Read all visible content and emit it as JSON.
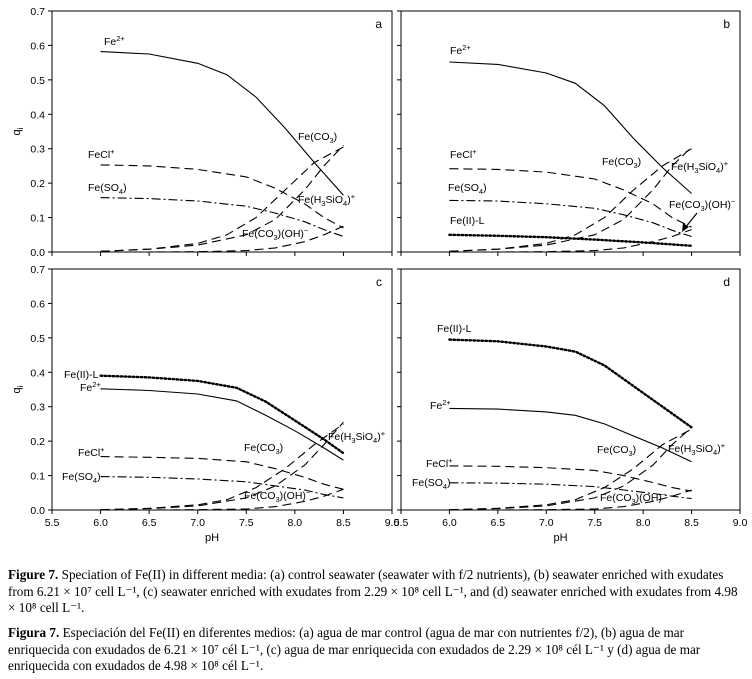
{
  "figure": {
    "xlabel": "pH",
    "ylabel": "q",
    "ylabel_sub": "i",
    "xticks": [
      "5.5",
      "6.0",
      "6.5",
      "7.0",
      "7.5",
      "8.0",
      "8.5",
      "9.0"
    ],
    "yticks": [
      "0.0",
      "0.1",
      "0.2",
      "0.3",
      "0.4",
      "0.5",
      "0.6",
      "0.7"
    ]
  },
  "chart_data": [
    {
      "panel": "a",
      "type": "line",
      "xlim": [
        5.5,
        9.0
      ],
      "ylim": [
        0,
        0.7
      ],
      "grid": false,
      "series": [
        {
          "name": "Fe2+",
          "style": "solid",
          "x": [
            6.0,
            6.5,
            7.0,
            7.3,
            7.6,
            7.9,
            8.2,
            8.5
          ],
          "y": [
            0.582,
            0.575,
            0.548,
            0.515,
            0.45,
            0.36,
            0.26,
            0.165
          ]
        },
        {
          "name": "FeCl+",
          "style": "longdash",
          "x": [
            6.0,
            6.5,
            7.0,
            7.5,
            7.8,
            8.1,
            8.3,
            8.5
          ],
          "y": [
            0.253,
            0.25,
            0.24,
            0.218,
            0.185,
            0.14,
            0.1,
            0.07
          ]
        },
        {
          "name": "Fe(SO4)",
          "style": "dashdot",
          "x": [
            6.0,
            6.5,
            7.0,
            7.5,
            7.8,
            8.1,
            8.3,
            8.5
          ],
          "y": [
            0.158,
            0.155,
            0.148,
            0.133,
            0.113,
            0.088,
            0.065,
            0.045
          ]
        },
        {
          "name": "Fe(CO3)",
          "style": "longdash",
          "x": [
            6.0,
            6.5,
            7.0,
            7.3,
            7.6,
            7.9,
            8.2,
            8.5
          ],
          "y": [
            0.002,
            0.008,
            0.025,
            0.05,
            0.1,
            0.18,
            0.26,
            0.305
          ]
        },
        {
          "name": "Fe(H3SiO4)+",
          "style": "longdash",
          "x": [
            6.0,
            6.5,
            7.0,
            7.5,
            7.8,
            8.1,
            8.3,
            8.5
          ],
          "y": [
            0.002,
            0.008,
            0.02,
            0.05,
            0.095,
            0.18,
            0.25,
            0.31
          ]
        },
        {
          "name": "Fe(CO3)(OH)-",
          "style": "longdash",
          "x": [
            6.0,
            6.5,
            7.0,
            7.5,
            7.8,
            8.1,
            8.3,
            8.5
          ],
          "y": [
            0.0,
            0.0,
            0.001,
            0.004,
            0.012,
            0.03,
            0.05,
            0.075
          ]
        }
      ]
    },
    {
      "panel": "b",
      "type": "line",
      "xlim": [
        5.5,
        9.0
      ],
      "ylim": [
        0,
        0.7
      ],
      "grid": false,
      "series": [
        {
          "name": "Fe2+",
          "style": "solid",
          "x": [
            6.0,
            6.5,
            7.0,
            7.3,
            7.6,
            7.9,
            8.2,
            8.5
          ],
          "y": [
            0.552,
            0.545,
            0.52,
            0.49,
            0.425,
            0.33,
            0.245,
            0.17
          ]
        },
        {
          "name": "FeCl+",
          "style": "longdash",
          "x": [
            6.0,
            6.5,
            7.0,
            7.5,
            7.8,
            8.1,
            8.3,
            8.5
          ],
          "y": [
            0.242,
            0.24,
            0.232,
            0.212,
            0.18,
            0.14,
            0.1,
            0.072
          ]
        },
        {
          "name": "Fe(SO4)",
          "style": "dashdot",
          "x": [
            6.0,
            6.5,
            7.0,
            7.5,
            7.8,
            8.1,
            8.3,
            8.5
          ],
          "y": [
            0.15,
            0.148,
            0.14,
            0.127,
            0.108,
            0.085,
            0.063,
            0.045
          ]
        },
        {
          "name": "Fe(II)-L",
          "style": "dotted",
          "x": [
            6.0,
            6.5,
            7.0,
            7.5,
            8.0,
            8.5
          ],
          "y": [
            0.05,
            0.047,
            0.043,
            0.036,
            0.028,
            0.018
          ]
        },
        {
          "name": "Fe(CO3)",
          "style": "longdash",
          "x": [
            6.0,
            6.5,
            7.0,
            7.3,
            7.6,
            7.9,
            8.2,
            8.5
          ],
          "y": [
            0.002,
            0.008,
            0.025,
            0.05,
            0.1,
            0.18,
            0.25,
            0.3
          ]
        },
        {
          "name": "Fe(H3SiO4)+",
          "style": "longdash",
          "x": [
            6.0,
            6.5,
            7.0,
            7.5,
            7.8,
            8.1,
            8.3,
            8.5
          ],
          "y": [
            0.002,
            0.008,
            0.02,
            0.05,
            0.095,
            0.18,
            0.25,
            0.305
          ]
        },
        {
          "name": "Fe(CO3)(OH)-",
          "style": "longdash",
          "x": [
            6.0,
            6.5,
            7.0,
            7.5,
            7.8,
            8.1,
            8.3,
            8.5
          ],
          "y": [
            0.0,
            0.0,
            0.001,
            0.004,
            0.012,
            0.03,
            0.045,
            0.065
          ]
        }
      ]
    },
    {
      "panel": "c",
      "type": "line",
      "xlim": [
        5.5,
        9.0
      ],
      "ylim": [
        0,
        0.7
      ],
      "grid": false,
      "series": [
        {
          "name": "Fe(II)-L",
          "style": "dotted",
          "x": [
            6.0,
            6.5,
            7.0,
            7.4,
            7.7,
            8.0,
            8.3,
            8.5
          ],
          "y": [
            0.39,
            0.385,
            0.375,
            0.355,
            0.315,
            0.26,
            0.205,
            0.165
          ]
        },
        {
          "name": "Fe2+",
          "style": "solid",
          "x": [
            6.0,
            6.5,
            7.0,
            7.4,
            7.7,
            8.0,
            8.3,
            8.5
          ],
          "y": [
            0.352,
            0.347,
            0.337,
            0.317,
            0.275,
            0.23,
            0.18,
            0.145
          ]
        },
        {
          "name": "FeCl+",
          "style": "longdash",
          "x": [
            6.0,
            6.5,
            7.0,
            7.5,
            7.8,
            8.1,
            8.3,
            8.5
          ],
          "y": [
            0.155,
            0.153,
            0.15,
            0.14,
            0.12,
            0.095,
            0.075,
            0.06
          ]
        },
        {
          "name": "Fe(SO4)",
          "style": "dashdot",
          "x": [
            6.0,
            6.5,
            7.0,
            7.5,
            7.8,
            8.1,
            8.3,
            8.5
          ],
          "y": [
            0.097,
            0.095,
            0.09,
            0.082,
            0.07,
            0.058,
            0.045,
            0.035
          ]
        },
        {
          "name": "Fe(CO3)",
          "style": "longdash",
          "x": [
            6.0,
            6.5,
            7.0,
            7.3,
            7.6,
            7.9,
            8.2,
            8.5
          ],
          "y": [
            0.001,
            0.005,
            0.015,
            0.03,
            0.065,
            0.12,
            0.19,
            0.25
          ]
        },
        {
          "name": "Fe(H3SiO4)+",
          "style": "longdash",
          "x": [
            6.0,
            6.5,
            7.0,
            7.5,
            7.8,
            8.1,
            8.3,
            8.5
          ],
          "y": [
            0.001,
            0.004,
            0.012,
            0.035,
            0.07,
            0.13,
            0.19,
            0.255
          ]
        },
        {
          "name": "Fe(CO3)(OH)-",
          "style": "longdash",
          "x": [
            6.0,
            6.5,
            7.0,
            7.5,
            7.8,
            8.1,
            8.3,
            8.5
          ],
          "y": [
            0.0,
            0.0,
            0.001,
            0.003,
            0.01,
            0.025,
            0.04,
            0.06
          ]
        }
      ]
    },
    {
      "panel": "d",
      "type": "line",
      "xlim": [
        5.5,
        9.0
      ],
      "ylim": [
        0,
        0.7
      ],
      "grid": false,
      "series": [
        {
          "name": "Fe(II)-L",
          "style": "dotted",
          "x": [
            6.0,
            6.5,
            7.0,
            7.3,
            7.6,
            7.9,
            8.2,
            8.5
          ],
          "y": [
            0.495,
            0.49,
            0.475,
            0.46,
            0.42,
            0.36,
            0.3,
            0.24
          ]
        },
        {
          "name": "Fe2+",
          "style": "solid",
          "x": [
            6.0,
            6.5,
            7.0,
            7.3,
            7.6,
            7.9,
            8.2,
            8.5
          ],
          "y": [
            0.295,
            0.293,
            0.285,
            0.275,
            0.25,
            0.215,
            0.18,
            0.14
          ]
        },
        {
          "name": "FeCl+",
          "style": "longdash",
          "x": [
            6.0,
            6.5,
            7.0,
            7.5,
            7.8,
            8.1,
            8.3,
            8.5
          ],
          "y": [
            0.128,
            0.127,
            0.123,
            0.115,
            0.1,
            0.08,
            0.065,
            0.055
          ]
        },
        {
          "name": "Fe(SO4)",
          "style": "dashdot",
          "x": [
            6.0,
            6.5,
            7.0,
            7.5,
            7.8,
            8.1,
            8.3,
            8.5
          ],
          "y": [
            0.079,
            0.078,
            0.075,
            0.068,
            0.058,
            0.048,
            0.04,
            0.033
          ]
        },
        {
          "name": "Fe(CO3)",
          "style": "longdash",
          "x": [
            6.0,
            6.5,
            7.0,
            7.3,
            7.6,
            7.9,
            8.2,
            8.5
          ],
          "y": [
            0.001,
            0.005,
            0.015,
            0.03,
            0.065,
            0.12,
            0.19,
            0.235
          ]
        },
        {
          "name": "Fe(H3SiO4)+",
          "style": "longdash",
          "x": [
            6.0,
            6.5,
            7.0,
            7.5,
            7.8,
            8.1,
            8.3,
            8.5
          ],
          "y": [
            0.001,
            0.004,
            0.012,
            0.035,
            0.07,
            0.13,
            0.19,
            0.24
          ]
        },
        {
          "name": "Fe(CO3)(OH)-",
          "style": "longdash",
          "x": [
            6.0,
            6.5,
            7.0,
            7.5,
            7.8,
            8.1,
            8.3,
            8.5
          ],
          "y": [
            0.0,
            0.0,
            0.001,
            0.003,
            0.01,
            0.025,
            0.04,
            0.058
          ]
        }
      ]
    }
  ],
  "caption": {
    "en_label": "Figure 7",
    "en_text": "Speciation of Fe(II) in different media: (a) control seawater (seawater with f/2 nutrients), (b) seawater enriched with exudates from 6.21 × 10⁷ cell L⁻¹, (c) seawater enriched with exudates from 2.29 × 10⁸ cell L⁻¹, and (d) seawater enriched with exudates from 4.98 × 10⁸ cell L⁻¹.",
    "es_label": "Figura 7",
    "es_text": "Especiación del Fe(II) en diferentes medios: (a) agua de mar control (agua de mar con nutrientes f/2), (b) agua de mar enriquecida con exudados de 6.21 × 10⁷ cél L⁻¹, (c) agua de mar enriquecida con exudados de 2.29 × 10⁸ cél L⁻¹ y (d) agua de mar enriquecida con exudados de 4.98 × 10⁸ cél L⁻¹."
  }
}
